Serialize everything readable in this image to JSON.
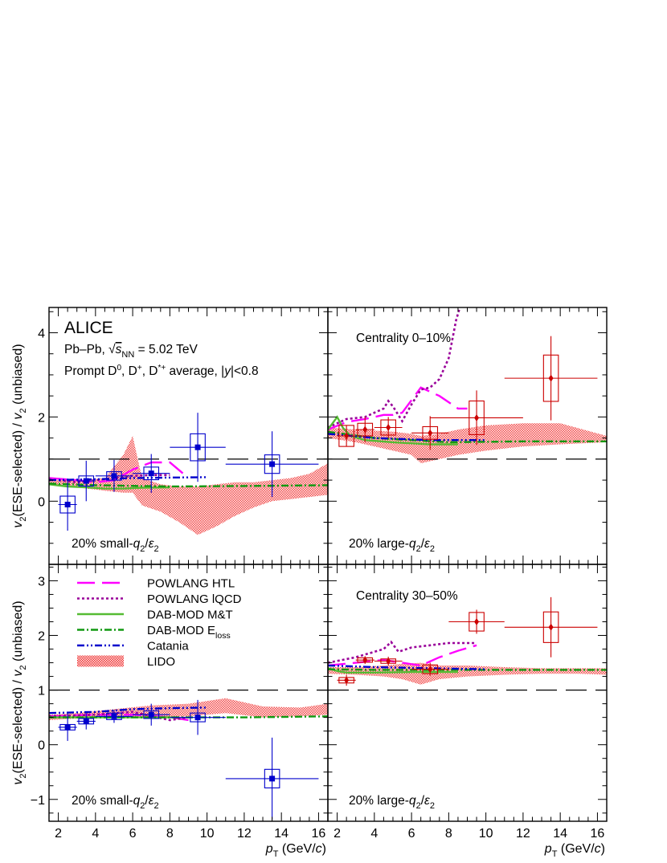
{
  "figure": {
    "experiment": "ALICE",
    "system_prefix": "Pb–Pb, ",
    "energy_value": " = 5.02 TeV",
    "species_text": "Prompt D",
    "species_rest": ", D",
    "species_rest2": ", D",
    "species_tail": " average, |",
    "rapidity_tail": "|<0.8",
    "sqrt_sub": "NN",
    "y_axis_label": "(ESE-selected) / ",
    "y_axis_tail": " (unbiased)",
    "x_axis_label": "(GeV/",
    "x_axis_tail": ")"
  },
  "legend": {
    "entries": [
      {
        "label": "POWLANG HTL",
        "color": "#ff00ff",
        "style": "longdash"
      },
      {
        "label": "POWLANG lQCD",
        "color": "#990099",
        "style": "dotted"
      },
      {
        "label": "DAB-MOD M&T",
        "color": "#55bb33",
        "style": "solid"
      },
      {
        "label": "DAB-MOD E",
        "sub": "loss",
        "color": "#119911",
        "style": "dashdot"
      },
      {
        "label": "Catania",
        "color": "#0000cc",
        "style": "dashdotdot"
      },
      {
        "label": "LIDO",
        "color": "#ee3333",
        "style": "band"
      }
    ]
  },
  "chart_data": [
    {
      "type": "scatter",
      "panel": "top-left",
      "title": "",
      "selection_label": "20% small-",
      "xlabel": "pT (GeV/c)",
      "ylabel": "v2 (ESE-selected) / v2 (unbiased)",
      "xlim": [
        1.5,
        16.5
      ],
      "ylim": [
        -1.5,
        4.6
      ],
      "yticks": [
        0,
        2,
        4
      ],
      "reference_line": 1,
      "marker_color": "#0000cc",
      "points": [
        {
          "x": 2.5,
          "y": -0.08,
          "xerr": 0.5,
          "yerr": 0.62,
          "syst": 0.2
        },
        {
          "x": 3.5,
          "y": 0.48,
          "xerr": 0.5,
          "yerr": 0.48,
          "syst": 0.12
        },
        {
          "x": 5.0,
          "y": 0.6,
          "xerr": 1.0,
          "yerr": 0.38,
          "syst": 0.1
        },
        {
          "x": 7.0,
          "y": 0.66,
          "xerr": 1.0,
          "yerr": 0.46,
          "syst": 0.15
        },
        {
          "x": 9.5,
          "y": 1.28,
          "xerr": 1.5,
          "yerr": 0.82,
          "syst": 0.32
        },
        {
          "x": 13.5,
          "y": 0.88,
          "xerr": 2.5,
          "yerr": 0.78,
          "syst": 0.22
        }
      ],
      "models": [
        {
          "name": "POWLANG HTL",
          "x": [
            1.5,
            3,
            4,
            5,
            6,
            7,
            8,
            9
          ],
          "y": [
            0.55,
            0.5,
            0.45,
            0.5,
            0.75,
            0.92,
            0.92,
            0.55
          ]
        },
        {
          "name": "POWLANG lQCD",
          "x": [
            1.5,
            3,
            4,
            5,
            6,
            7,
            8
          ],
          "y": [
            0.52,
            0.45,
            0.5,
            0.55,
            0.6,
            0.62,
            0.62
          ]
        },
        {
          "name": "DAB-MOD M&T",
          "x": [
            1.5,
            2.5,
            3.5,
            4.5,
            5.5,
            6.5,
            8
          ],
          "y": [
            0.4,
            0.35,
            0.33,
            0.3,
            0.3,
            0.32,
            0.33
          ]
        },
        {
          "name": "DAB-MOD Eloss",
          "x": [
            1.5,
            4,
            8,
            12,
            16.5
          ],
          "y": [
            0.42,
            0.38,
            0.35,
            0.36,
            0.38
          ]
        },
        {
          "name": "Catania",
          "x": [
            1.5,
            4,
            6,
            8,
            10
          ],
          "y": [
            0.5,
            0.52,
            0.55,
            0.56,
            0.57
          ]
        },
        {
          "name": "LIDO",
          "x": [
            1.5,
            2.5,
            3.5,
            4.5,
            5.5,
            6.0,
            6.5,
            7.5,
            8.5,
            9.5,
            10.5,
            11.5,
            12.5,
            13.5,
            14.5,
            15.5,
            16.5
          ],
          "y_low": [
            0.4,
            0.38,
            0.3,
            0.25,
            0.2,
            0.2,
            -0.1,
            -0.25,
            -0.5,
            -0.8,
            -0.6,
            -0.35,
            -0.15,
            0.0,
            0.05,
            0.1,
            0.15
          ],
          "y_high": [
            0.5,
            0.5,
            0.5,
            0.55,
            1.1,
            1.55,
            0.55,
            0.4,
            0.35,
            0.35,
            0.4,
            0.45,
            0.45,
            0.5,
            0.55,
            0.65,
            0.9
          ]
        }
      ]
    },
    {
      "type": "scatter",
      "panel": "top-right",
      "title": "Centrality 0–10%",
      "selection_label": "20% large-",
      "xlabel": "pT (GeV/c)",
      "ylabel": "v2 (ESE-selected) / v2 (unbiased)",
      "xlim": [
        1.5,
        16.5
      ],
      "ylim": [
        -1.5,
        4.6
      ],
      "reference_line": 1,
      "marker_color": "#cc0000",
      "points": [
        {
          "x": 2.5,
          "y": 1.55,
          "xerr": 0.5,
          "yerr": 0.25,
          "syst": 0.25
        },
        {
          "x": 3.5,
          "y": 1.7,
          "xerr": 0.5,
          "yerr": 0.3,
          "syst": 0.15
        },
        {
          "x": 4.75,
          "y": 1.75,
          "xerr": 0.75,
          "yerr": 0.25,
          "syst": 0.18
        },
        {
          "x": 7.0,
          "y": 1.62,
          "xerr": 1.0,
          "yerr": 0.4,
          "syst": 0.15
        },
        {
          "x": 9.5,
          "y": 1.98,
          "xerr": 2.5,
          "yerr": 0.65,
          "syst": 0.4
        },
        {
          "x": 13.5,
          "y": 2.92,
          "xerr": 2.5,
          "yerr": 1.0,
          "syst": 0.55
        }
      ],
      "models": [
        {
          "name": "POWLANG HTL",
          "x": [
            1.5,
            2.5,
            3.5,
            4.5,
            5.0,
            5.5,
            6.5,
            7.5,
            8.5,
            9.0
          ],
          "y": [
            1.7,
            1.88,
            1.95,
            2.05,
            2.05,
            2.1,
            2.7,
            2.5,
            2.2,
            2.2
          ]
        },
        {
          "name": "POWLANG lQCD",
          "x": [
            1.5,
            2.5,
            3.5,
            4.5,
            4.75,
            5.0,
            5.5,
            6.0,
            6.5,
            7.0,
            7.5,
            8.0,
            8.4,
            8.6
          ],
          "y": [
            1.75,
            1.95,
            2.0,
            2.2,
            2.38,
            2.25,
            1.9,
            2.3,
            2.65,
            2.7,
            2.9,
            3.4,
            4.3,
            4.6
          ]
        },
        {
          "name": "DAB-MOD M&T",
          "x": [
            1.5,
            2.0,
            2.3,
            2.7,
            3.5,
            5,
            7,
            8.5
          ],
          "y": [
            1.7,
            2.0,
            1.75,
            1.55,
            1.45,
            1.4,
            1.35,
            1.35
          ]
        },
        {
          "name": "DAB-MOD Eloss",
          "x": [
            1.5,
            4,
            8,
            12,
            16.5
          ],
          "y": [
            1.65,
            1.5,
            1.4,
            1.42,
            1.42
          ]
        },
        {
          "name": "Catania",
          "x": [
            1.5,
            4,
            7,
            10
          ],
          "y": [
            1.6,
            1.5,
            1.45,
            1.45
          ]
        },
        {
          "name": "LIDO",
          "x": [
            1.5,
            3,
            5,
            6,
            6.5,
            7.5,
            8.5,
            10,
            12,
            14,
            16.5
          ],
          "y_low": [
            1.5,
            1.4,
            1.2,
            1.1,
            0.9,
            1.0,
            1.1,
            1.2,
            1.3,
            1.35,
            1.4
          ],
          "y_high": [
            1.75,
            1.7,
            1.65,
            1.6,
            1.55,
            1.6,
            1.7,
            1.8,
            1.85,
            1.85,
            1.55
          ]
        }
      ]
    },
    {
      "type": "scatter",
      "panel": "bottom-left",
      "title": "",
      "selection_label": "20% small-",
      "xlabel": "pT (GeV/c)",
      "ylabel": "v2 (ESE-selected) / v2 (unbiased)",
      "xlim": [
        1.5,
        16.5
      ],
      "ylim": [
        -1.4,
        3.3
      ],
      "yticks": [
        -1,
        0,
        1,
        2,
        3
      ],
      "reference_line": 1,
      "marker_color": "#0000cc",
      "points": [
        {
          "x": 2.5,
          "y": 0.32,
          "xerr": 0.5,
          "yerr": 0.25,
          "syst": 0.05
        },
        {
          "x": 3.5,
          "y": 0.43,
          "xerr": 0.5,
          "yerr": 0.15,
          "syst": 0.05
        },
        {
          "x": 5.0,
          "y": 0.52,
          "xerr": 1.0,
          "yerr": 0.12,
          "syst": 0.06
        },
        {
          "x": 7.0,
          "y": 0.55,
          "xerr": 1.0,
          "yerr": 0.2,
          "syst": 0.07
        },
        {
          "x": 9.5,
          "y": 0.5,
          "xerr": 1.5,
          "yerr": 0.32,
          "syst": 0.08
        },
        {
          "x": 13.5,
          "y": -0.62,
          "xerr": 2.5,
          "yerr": 0.75,
          "syst": 0.17
        }
      ],
      "models": [
        {
          "name": "POWLANG HTL",
          "x": [
            1.5,
            4,
            6,
            8,
            9
          ],
          "y": [
            0.52,
            0.55,
            0.55,
            0.5,
            0.45
          ]
        },
        {
          "name": "POWLANG lQCD",
          "x": [
            1.5,
            4,
            6,
            8,
            9
          ],
          "y": [
            0.52,
            0.55,
            0.6,
            0.45,
            0.5
          ]
        },
        {
          "name": "DAB-MOD M&T",
          "x": [
            1.5,
            4,
            6,
            8.5
          ],
          "y": [
            0.5,
            0.5,
            0.5,
            0.5
          ]
        },
        {
          "name": "DAB-MOD Eloss",
          "x": [
            1.5,
            4,
            8,
            12,
            16.5
          ],
          "y": [
            0.5,
            0.5,
            0.5,
            0.5,
            0.52
          ]
        },
        {
          "name": "Catania",
          "x": [
            1.5,
            4,
            6,
            8,
            10
          ],
          "y": [
            0.58,
            0.6,
            0.65,
            0.67,
            0.68
          ]
        },
        {
          "name": "LIDO",
          "x": [
            1.5,
            3,
            5,
            7,
            9,
            11,
            13,
            15,
            16.5
          ],
          "y_low": [
            0.45,
            0.48,
            0.5,
            0.5,
            0.52,
            0.58,
            0.5,
            0.52,
            0.55
          ],
          "y_high": [
            0.55,
            0.58,
            0.65,
            0.72,
            0.75,
            0.85,
            0.7,
            0.68,
            0.75
          ]
        }
      ]
    },
    {
      "type": "scatter",
      "panel": "bottom-right",
      "title": "Centrality 30–50%",
      "selection_label": "20% large-",
      "xlabel": "pT (GeV/c)",
      "ylabel": "v2 (ESE-selected) / v2 (unbiased)",
      "xlim": [
        1.5,
        16.5
      ],
      "ylim": [
        -1.4,
        3.3
      ],
      "reference_line": 1,
      "marker_color": "#cc0000",
      "points": [
        {
          "x": 2.5,
          "y": 1.18,
          "xerr": 0.5,
          "yerr": 0.1,
          "syst": 0.05
        },
        {
          "x": 3.5,
          "y": 1.55,
          "xerr": 0.5,
          "yerr": 0.07,
          "syst": 0.04
        },
        {
          "x": 4.75,
          "y": 1.53,
          "xerr": 0.75,
          "yerr": 0.08,
          "syst": 0.04
        },
        {
          "x": 7.0,
          "y": 1.38,
          "xerr": 1.0,
          "yerr": 0.12,
          "syst": 0.08
        },
        {
          "x": 9.5,
          "y": 2.25,
          "xerr": 1.5,
          "yerr": 0.22,
          "syst": 0.17
        },
        {
          "x": 13.5,
          "y": 2.15,
          "xerr": 2.5,
          "yerr": 0.55,
          "syst": 0.28
        }
      ],
      "models": [
        {
          "name": "POWLANG HTL",
          "x": [
            1.5,
            3,
            4.5,
            5.5,
            6.5,
            7.5,
            8.5,
            9.5
          ],
          "y": [
            1.45,
            1.5,
            1.55,
            1.5,
            1.45,
            1.6,
            1.72,
            1.82
          ]
        },
        {
          "name": "POWLANG lQCD",
          "x": [
            1.5,
            3,
            4.5,
            4.9,
            5.3,
            6,
            7,
            8,
            9.5
          ],
          "y": [
            1.5,
            1.6,
            1.75,
            1.88,
            1.7,
            1.78,
            1.82,
            1.86,
            1.86
          ]
        },
        {
          "name": "DAB-MOD M&T",
          "x": [
            1.5,
            2.0,
            2.5,
            4,
            6,
            8.5
          ],
          "y": [
            1.4,
            1.35,
            1.32,
            1.32,
            1.33,
            1.33
          ]
        },
        {
          "name": "DAB-MOD Eloss",
          "x": [
            1.5,
            4,
            8,
            12,
            16.5
          ],
          "y": [
            1.38,
            1.37,
            1.37,
            1.37,
            1.37
          ]
        },
        {
          "name": "Catania",
          "x": [
            1.5,
            4,
            7,
            10
          ],
          "y": [
            1.45,
            1.42,
            1.4,
            1.38
          ]
        },
        {
          "name": "LIDO",
          "x": [
            1.5,
            3,
            4.5,
            5.5,
            6.5,
            7.5,
            9,
            11,
            13,
            15,
            16.5
          ],
          "y_low": [
            1.3,
            1.28,
            1.25,
            1.2,
            1.1,
            1.2,
            1.25,
            1.28,
            1.3,
            1.3,
            1.28
          ],
          "y_high": [
            1.42,
            1.42,
            1.45,
            1.48,
            1.5,
            1.45,
            1.45,
            1.42,
            1.4,
            1.4,
            1.4
          ]
        }
      ]
    }
  ]
}
